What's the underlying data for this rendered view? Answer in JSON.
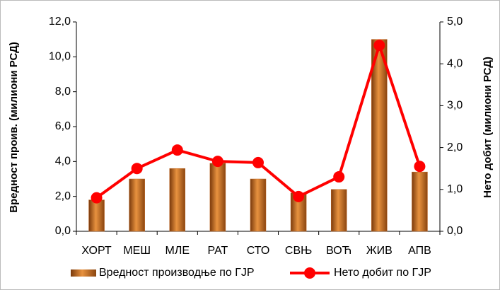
{
  "chart_data": {
    "type": "bar-line",
    "categories": [
      "ХОРТ",
      "МЕШ",
      "МЛЕ",
      "РАТ",
      "СТО",
      "СВЊ",
      "ВОЋ",
      "ЖИВ",
      "АПВ"
    ],
    "series": [
      {
        "name": "Вредност производње по ГЈР",
        "type": "bar",
        "color": "#c0651f",
        "values": [
          1.8,
          3.0,
          3.6,
          3.9,
          3.0,
          2.2,
          2.4,
          11.0,
          3.4
        ]
      },
      {
        "name": "Нето добит по ГЈР",
        "type": "line",
        "axis": "y2",
        "color": "#ff0000",
        "values": [
          0.8,
          1.5,
          1.94,
          1.67,
          1.64,
          0.83,
          1.3,
          4.44,
          1.55
        ]
      }
    ],
    "y_label": "Вредност проив. (милиони РСД)",
    "y2_label": "Нето добит (милиони РСД)",
    "ylim": [
      0,
      12
    ],
    "yticks": [
      {
        "value": 0,
        "label": "0,0"
      },
      {
        "value": 2,
        "label": "2,0"
      },
      {
        "value": 4,
        "label": "4,0"
      },
      {
        "value": 6,
        "label": "6,0"
      },
      {
        "value": 8,
        "label": "8,0"
      },
      {
        "value": 10,
        "label": "10,0"
      },
      {
        "value": 12,
        "label": "12,0"
      }
    ],
    "y2lim": [
      0,
      5
    ],
    "y2ticks": [
      {
        "value": 0,
        "label": "0,0"
      },
      {
        "value": 1,
        "label": "1,0"
      },
      {
        "value": 2,
        "label": "2,0"
      },
      {
        "value": 3,
        "label": "3,0"
      },
      {
        "value": 4,
        "label": "4,0"
      },
      {
        "value": 5,
        "label": "5,0"
      }
    ],
    "grid": false
  }
}
